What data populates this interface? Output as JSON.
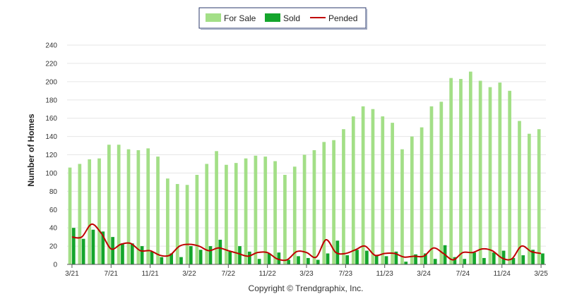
{
  "chart_data": {
    "type": "bar",
    "ylabel": "Number of Homes",
    "ylim": [
      0,
      240
    ],
    "yticks": [
      0,
      20,
      40,
      60,
      80,
      100,
      120,
      140,
      160,
      180,
      200,
      220,
      240
    ],
    "grid": true,
    "legend_position": "top-center",
    "footer": "Copyright © Trendgraphix, Inc.",
    "x_tick_labels": [
      "3/21",
      "7/21",
      "11/21",
      "3/22",
      "7/22",
      "11/22",
      "3/23",
      "7/23",
      "11/23",
      "3/24",
      "7/24",
      "11/24",
      "3/25"
    ],
    "x_tick_every": 4,
    "categories": [
      "3/21",
      "4/21",
      "5/21",
      "6/21",
      "7/21",
      "8/21",
      "9/21",
      "10/21",
      "11/21",
      "12/21",
      "1/22",
      "2/22",
      "3/22",
      "4/22",
      "5/22",
      "6/22",
      "7/22",
      "8/22",
      "9/22",
      "10/22",
      "11/22",
      "12/22",
      "1/23",
      "2/23",
      "3/23",
      "4/23",
      "5/23",
      "6/23",
      "7/23",
      "8/23",
      "9/23",
      "10/23",
      "11/23",
      "12/23",
      "1/24",
      "2/24",
      "3/24",
      "4/24",
      "5/24",
      "6/24",
      "7/24",
      "8/24",
      "9/24",
      "10/24",
      "11/24",
      "12/24",
      "1/25",
      "2/25",
      "3/25"
    ],
    "series": [
      {
        "name": "For Sale",
        "type": "bar",
        "color": "#a3df87",
        "values": [
          106,
          110,
          115,
          116,
          131,
          131,
          126,
          125,
          127,
          118,
          94,
          88,
          87,
          98,
          110,
          124,
          109,
          111,
          116,
          119,
          118,
          113,
          98,
          107,
          120,
          125,
          134,
          136,
          148,
          162,
          173,
          170,
          162,
          155,
          126,
          140,
          150,
          173,
          178,
          204,
          203,
          211,
          201,
          194,
          199,
          190,
          157,
          143,
          148
        ]
      },
      {
        "name": "Sold",
        "type": "bar",
        "color": "#14a52c",
        "values": [
          40,
          28,
          38,
          36,
          30,
          23,
          23,
          20,
          14,
          8,
          12,
          8,
          20,
          16,
          20,
          27,
          14,
          20,
          14,
          6,
          12,
          13,
          5,
          9,
          7,
          5,
          12,
          26,
          10,
          16,
          15,
          10,
          9,
          14,
          3,
          11,
          12,
          6,
          21,
          8,
          6,
          13,
          7,
          13,
          15,
          7,
          10,
          16,
          12
        ]
      },
      {
        "name": "Pended",
        "type": "line",
        "color": "#c00000",
        "values": [
          30,
          30,
          44,
          34,
          17,
          22,
          23,
          15,
          15,
          10,
          10,
          20,
          22,
          20,
          15,
          18,
          15,
          12,
          9,
          13,
          13,
          6,
          5,
          14,
          13,
          8,
          27,
          13,
          12,
          16,
          20,
          10,
          12,
          12,
          8,
          9,
          9,
          18,
          12,
          5,
          13,
          13,
          17,
          15,
          7,
          6,
          20,
          14,
          12
        ]
      }
    ]
  }
}
